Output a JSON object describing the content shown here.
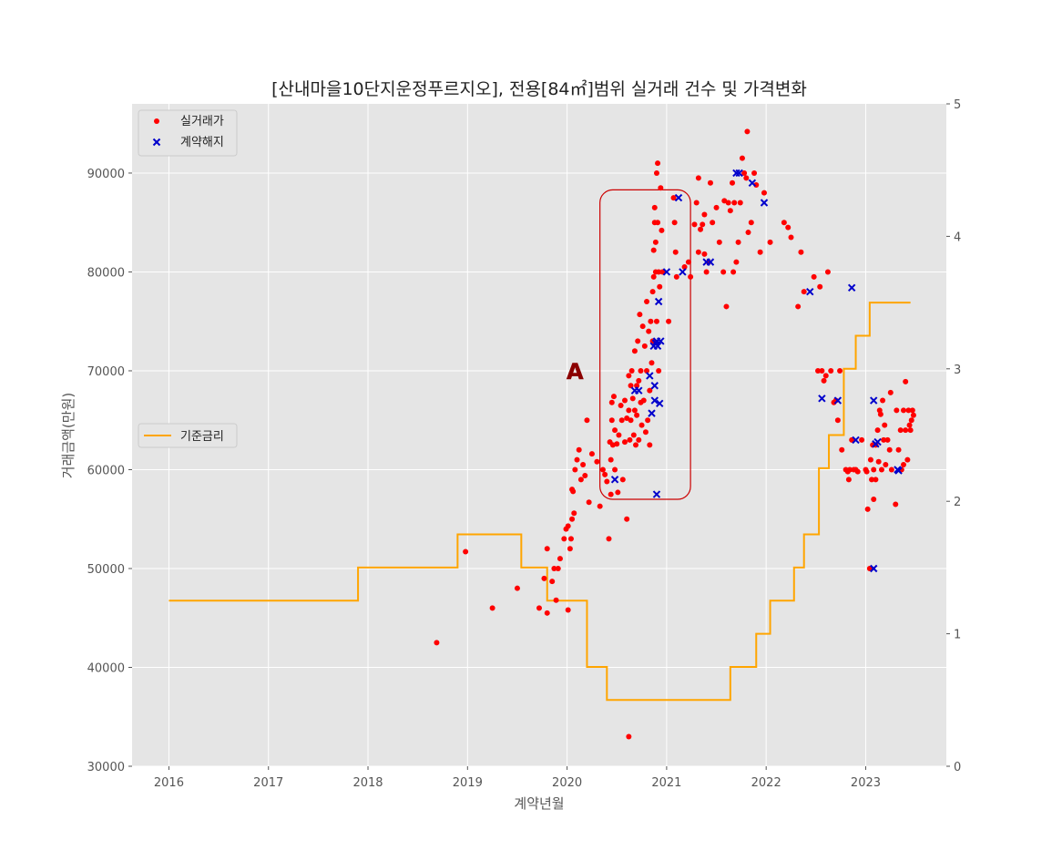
{
  "chart_data": {
    "type": "scatter",
    "title": "[산내마을10단지운정푸르지오], 전용[84㎡]범위 실거래 건수 및 가격변화",
    "xlabel": "계약년월",
    "ylabel": "거래금액(만원)",
    "xlim": [
      2015.63,
      2023.81
    ],
    "ylim": [
      30000,
      97000
    ],
    "y2lim": [
      0,
      5
    ],
    "x_ticks": [
      "2016",
      "2017",
      "2018",
      "2019",
      "2020",
      "2021",
      "2022",
      "2023"
    ],
    "y_ticks": [
      "30000",
      "40000",
      "50000",
      "60000",
      "70000",
      "80000",
      "90000"
    ],
    "y2_ticks": [
      "0",
      "1",
      "2",
      "3",
      "4",
      "5"
    ],
    "grid": true,
    "legend_top": {
      "placement": "upper-left",
      "entries": [
        "실거래가",
        "계약해지"
      ]
    },
    "legend_mid": {
      "placement": "center-left",
      "entries": [
        "기준금리"
      ]
    },
    "colors": {
      "trade": "#ff0000",
      "cancel": "#0000cc",
      "rate": "#ffa500",
      "box": "#cc0000",
      "annotation": "#8b0000",
      "plot_bg": "#e5e5e5",
      "grid": "#ffffff"
    },
    "annotation": {
      "text": "A",
      "x": 2020.08,
      "y": 70000
    },
    "highlight_box": {
      "x": [
        2020.33,
        2021.24
      ],
      "y": [
        57000,
        88300
      ]
    },
    "series": [
      {
        "name": "실거래가",
        "marker": "dot",
        "points": [
          [
            2018.69,
            42500
          ],
          [
            2018.98,
            51700
          ],
          [
            2019.25,
            46000
          ],
          [
            2019.5,
            48000
          ],
          [
            2019.72,
            46000
          ],
          [
            2019.77,
            49000
          ],
          [
            2019.8,
            45500
          ],
          [
            2019.8,
            52000
          ],
          [
            2019.85,
            48700
          ],
          [
            2019.87,
            50000
          ],
          [
            2019.89,
            46800
          ],
          [
            2019.91,
            50000
          ],
          [
            2019.93,
            51000
          ],
          [
            2019.97,
            53000
          ],
          [
            2019.99,
            54000
          ],
          [
            2020.01,
            45800
          ],
          [
            2020.01,
            54300
          ],
          [
            2020.03,
            52000
          ],
          [
            2020.04,
            53000
          ],
          [
            2020.05,
            55000
          ],
          [
            2020.05,
            58000
          ],
          [
            2020.06,
            57800
          ],
          [
            2020.07,
            55600
          ],
          [
            2020.08,
            60000
          ],
          [
            2020.1,
            61000
          ],
          [
            2020.12,
            62000
          ],
          [
            2020.14,
            59000
          ],
          [
            2020.16,
            60500
          ],
          [
            2020.18,
            59400
          ],
          [
            2020.2,
            65000
          ],
          [
            2020.22,
            56700
          ],
          [
            2020.25,
            61600
          ],
          [
            2020.3,
            60800
          ],
          [
            2020.33,
            56300
          ],
          [
            2020.36,
            60000
          ],
          [
            2020.38,
            59500
          ],
          [
            2020.4,
            58800
          ],
          [
            2020.42,
            53000
          ],
          [
            2020.43,
            62800
          ],
          [
            2020.44,
            61000
          ],
          [
            2020.44,
            57500
          ],
          [
            2020.45,
            66800
          ],
          [
            2020.45,
            65000
          ],
          [
            2020.46,
            62500
          ],
          [
            2020.47,
            67400
          ],
          [
            2020.48,
            64000
          ],
          [
            2020.48,
            60000
          ],
          [
            2020.5,
            62600
          ],
          [
            2020.51,
            57700
          ],
          [
            2020.52,
            63500
          ],
          [
            2020.54,
            66500
          ],
          [
            2020.55,
            65000
          ],
          [
            2020.56,
            59000
          ],
          [
            2020.58,
            67000
          ],
          [
            2020.58,
            62800
          ],
          [
            2020.6,
            65200
          ],
          [
            2020.6,
            55000
          ],
          [
            2020.62,
            69500
          ],
          [
            2020.62,
            66000
          ],
          [
            2020.63,
            63000
          ],
          [
            2020.64,
            68500
          ],
          [
            2020.64,
            65000
          ],
          [
            2020.65,
            70000
          ],
          [
            2020.66,
            67200
          ],
          [
            2020.67,
            63500
          ],
          [
            2020.68,
            72000
          ],
          [
            2020.68,
            66000
          ],
          [
            2020.69,
            62500
          ],
          [
            2020.7,
            68500
          ],
          [
            2020.7,
            65500
          ],
          [
            2020.71,
            73000
          ],
          [
            2020.72,
            69000
          ],
          [
            2020.72,
            63000
          ],
          [
            2020.73,
            75700
          ],
          [
            2020.74,
            66800
          ],
          [
            2020.74,
            70000
          ],
          [
            2020.75,
            64500
          ],
          [
            2020.76,
            74500
          ],
          [
            2020.77,
            67000
          ],
          [
            2020.78,
            72500
          ],
          [
            2020.79,
            63800
          ],
          [
            2020.8,
            77000
          ],
          [
            2020.8,
            70000
          ],
          [
            2020.81,
            65000
          ],
          [
            2020.82,
            74000
          ],
          [
            2020.83,
            68000
          ],
          [
            2020.83,
            62500
          ],
          [
            2020.84,
            75000
          ],
          [
            2020.85,
            70800
          ],
          [
            2020.86,
            78000
          ],
          [
            2020.86,
            73000
          ],
          [
            2020.87,
            82200
          ],
          [
            2020.87,
            79500
          ],
          [
            2020.88,
            86500
          ],
          [
            2020.88,
            85000
          ],
          [
            2020.89,
            83000
          ],
          [
            2020.89,
            80000
          ],
          [
            2020.9,
            90000
          ],
          [
            2020.9,
            75000
          ],
          [
            2020.91,
            91000
          ],
          [
            2020.91,
            85000
          ],
          [
            2020.92,
            80000
          ],
          [
            2020.92,
            70000
          ],
          [
            2020.93,
            78500
          ],
          [
            2020.94,
            88500
          ],
          [
            2020.95,
            84200
          ],
          [
            2020.96,
            80000
          ],
          [
            2021.02,
            75000
          ],
          [
            2021.07,
            87500
          ],
          [
            2021.08,
            85000
          ],
          [
            2021.09,
            82000
          ],
          [
            2021.1,
            79500
          ],
          [
            2021.18,
            80500
          ],
          [
            2021.22,
            81000
          ],
          [
            2021.24,
            79500
          ],
          [
            2021.28,
            84800
          ],
          [
            2021.3,
            87000
          ],
          [
            2021.32,
            89500
          ],
          [
            2021.32,
            82000
          ],
          [
            2021.34,
            84300
          ],
          [
            2021.36,
            84800
          ],
          [
            2021.38,
            81800
          ],
          [
            2021.38,
            85800
          ],
          [
            2021.4,
            80000
          ],
          [
            2021.42,
            81000
          ],
          [
            2021.44,
            89000
          ],
          [
            2021.46,
            85000
          ],
          [
            2021.5,
            86500
          ],
          [
            2021.53,
            83000
          ],
          [
            2021.57,
            80000
          ],
          [
            2021.58,
            87200
          ],
          [
            2021.6,
            76500
          ],
          [
            2021.62,
            87000
          ],
          [
            2021.64,
            86200
          ],
          [
            2021.66,
            89000
          ],
          [
            2021.67,
            80000
          ],
          [
            2021.68,
            87000
          ],
          [
            2021.7,
            81000
          ],
          [
            2021.72,
            83000
          ],
          [
            2021.74,
            87000
          ],
          [
            2021.76,
            91500
          ],
          [
            2021.78,
            90000
          ],
          [
            2021.8,
            89500
          ],
          [
            2021.81,
            94200
          ],
          [
            2021.82,
            84000
          ],
          [
            2021.85,
            85000
          ],
          [
            2021.88,
            90000
          ],
          [
            2021.9,
            88800
          ],
          [
            2021.94,
            82000
          ],
          [
            2021.98,
            88000
          ],
          [
            2022.04,
            83000
          ],
          [
            2022.18,
            85000
          ],
          [
            2022.22,
            84500
          ],
          [
            2022.25,
            83500
          ],
          [
            2022.32,
            76500
          ],
          [
            2022.35,
            82000
          ],
          [
            2022.38,
            78000
          ],
          [
            2022.48,
            79500
          ],
          [
            2022.52,
            70000
          ],
          [
            2022.54,
            78500
          ],
          [
            2022.56,
            70000
          ],
          [
            2022.58,
            69000
          ],
          [
            2022.6,
            69500
          ],
          [
            2022.62,
            80000
          ],
          [
            2022.65,
            70000
          ],
          [
            2022.68,
            66800
          ],
          [
            2022.7,
            67000
          ],
          [
            2022.72,
            65000
          ],
          [
            2022.74,
            70000
          ],
          [
            2022.76,
            62000
          ],
          [
            2022.8,
            60000
          ],
          [
            2022.82,
            59800
          ],
          [
            2022.83,
            59000
          ],
          [
            2022.84,
            60000
          ],
          [
            2022.86,
            63000
          ],
          [
            2022.88,
            60000
          ],
          [
            2022.9,
            60000
          ],
          [
            2022.92,
            59800
          ],
          [
            2022.96,
            63000
          ],
          [
            2023.0,
            60000
          ],
          [
            2023.01,
            59800
          ],
          [
            2023.02,
            56000
          ],
          [
            2023.04,
            50000
          ],
          [
            2023.05,
            61000
          ],
          [
            2023.06,
            59000
          ],
          [
            2023.07,
            62500
          ],
          [
            2023.08,
            57000
          ],
          [
            2023.08,
            60000
          ],
          [
            2023.1,
            62500
          ],
          [
            2023.1,
            59000
          ],
          [
            2023.12,
            64000
          ],
          [
            2023.13,
            60800
          ],
          [
            2023.14,
            66000
          ],
          [
            2023.15,
            65600
          ],
          [
            2023.16,
            60000
          ],
          [
            2023.17,
            67000
          ],
          [
            2023.18,
            63000
          ],
          [
            2023.19,
            64500
          ],
          [
            2023.2,
            60500
          ],
          [
            2023.22,
            63000
          ],
          [
            2023.24,
            62000
          ],
          [
            2023.25,
            67800
          ],
          [
            2023.26,
            60000
          ],
          [
            2023.3,
            56500
          ],
          [
            2023.31,
            66000
          ],
          [
            2023.33,
            62000
          ],
          [
            2023.35,
            64000
          ],
          [
            2023.36,
            60000
          ],
          [
            2023.38,
            60500
          ],
          [
            2023.38,
            66000
          ],
          [
            2023.4,
            68900
          ],
          [
            2023.4,
            64000
          ],
          [
            2023.42,
            61000
          ],
          [
            2023.43,
            66000
          ],
          [
            2023.44,
            64500
          ],
          [
            2023.45,
            64000
          ],
          [
            2023.46,
            65000
          ],
          [
            2023.47,
            66000
          ],
          [
            2023.48,
            65500
          ],
          [
            2020.62,
            33000
          ]
        ]
      },
      {
        "name": "계약해지",
        "marker": "x",
        "points": [
          [
            2020.48,
            59000
          ],
          [
            2020.68,
            68000
          ],
          [
            2020.72,
            68000
          ],
          [
            2020.83,
            69500
          ],
          [
            2020.85,
            65700
          ],
          [
            2020.87,
            72500
          ],
          [
            2020.88,
            68500
          ],
          [
            2020.88,
            67000
          ],
          [
            2020.89,
            72800
          ],
          [
            2020.9,
            73000
          ],
          [
            2020.9,
            57500
          ],
          [
            2020.91,
            72500
          ],
          [
            2020.92,
            77000
          ],
          [
            2020.93,
            66700
          ],
          [
            2020.94,
            73000
          ],
          [
            2021.0,
            80000
          ],
          [
            2021.12,
            87500
          ],
          [
            2021.16,
            80000
          ],
          [
            2021.4,
            81000
          ],
          [
            2021.44,
            81000
          ],
          [
            2021.7,
            90000
          ],
          [
            2021.73,
            90000
          ],
          [
            2021.86,
            89000
          ],
          [
            2021.98,
            87000
          ],
          [
            2022.44,
            78000
          ],
          [
            2022.56,
            67200
          ],
          [
            2022.72,
            67000
          ],
          [
            2022.86,
            78400
          ],
          [
            2022.9,
            63000
          ],
          [
            2023.08,
            67000
          ],
          [
            2023.1,
            62600
          ],
          [
            2023.12,
            62800
          ],
          [
            2023.08,
            50000
          ],
          [
            2023.32,
            60000
          ],
          [
            2023.33,
            59900
          ]
        ]
      }
    ],
    "rate_series": {
      "name": "기준금리",
      "steps": [
        [
          2016.0,
          1.25
        ],
        [
          2017.9,
          1.5
        ],
        [
          2018.9,
          1.75
        ],
        [
          2019.54,
          1.5
        ],
        [
          2019.8,
          1.25
        ],
        [
          2020.2,
          0.75
        ],
        [
          2020.4,
          0.5
        ],
        [
          2021.64,
          0.75
        ],
        [
          2021.9,
          1.0
        ],
        [
          2022.04,
          1.25
        ],
        [
          2022.28,
          1.5
        ],
        [
          2022.38,
          1.75
        ],
        [
          2022.53,
          2.25
        ],
        [
          2022.63,
          2.5
        ],
        [
          2022.78,
          3.0
        ],
        [
          2022.9,
          3.25
        ],
        [
          2023.04,
          3.5
        ],
        [
          2023.45,
          3.5
        ]
      ]
    }
  }
}
